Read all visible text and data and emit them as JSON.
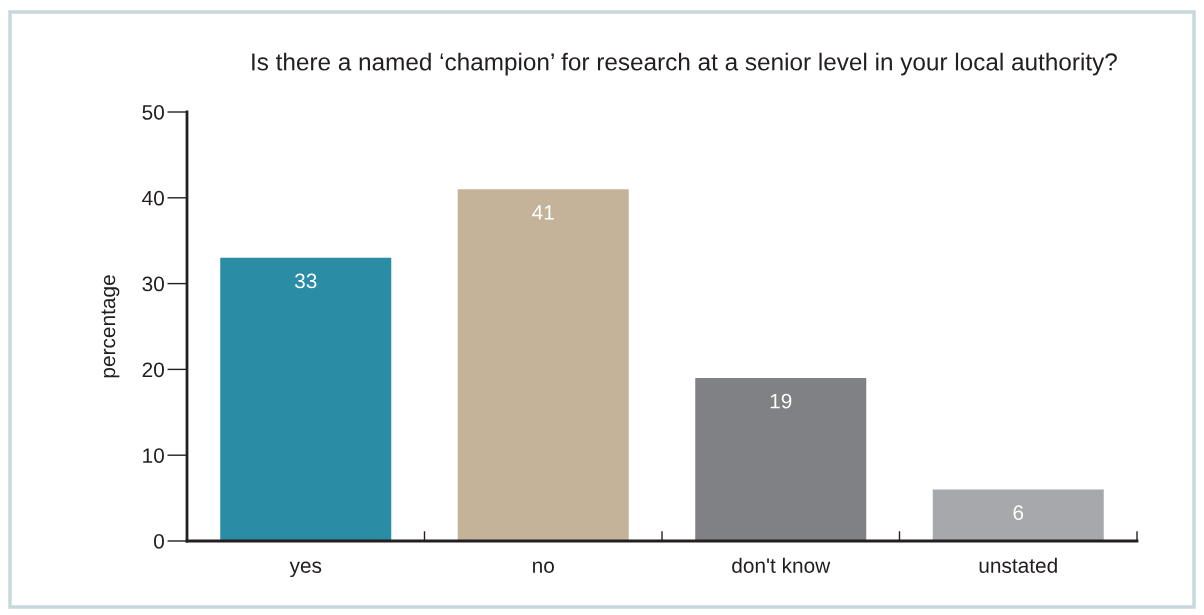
{
  "chart_data": {
    "type": "bar",
    "title": "Is there a named ‘champion’ for research at a senior level in your local authority?",
    "ylabel": "percentage",
    "categories": [
      "yes",
      "no",
      "don't know",
      "unstated"
    ],
    "values": [
      33,
      41,
      19,
      6
    ],
    "colors": [
      "#2a8ca5",
      "#c4b399",
      "#808184",
      "#a7a8ab"
    ],
    "ylim": [
      0,
      50
    ],
    "yticks": [
      0,
      10,
      20,
      30,
      40,
      50
    ],
    "data_labels": true,
    "grid": false,
    "legend": false
  }
}
